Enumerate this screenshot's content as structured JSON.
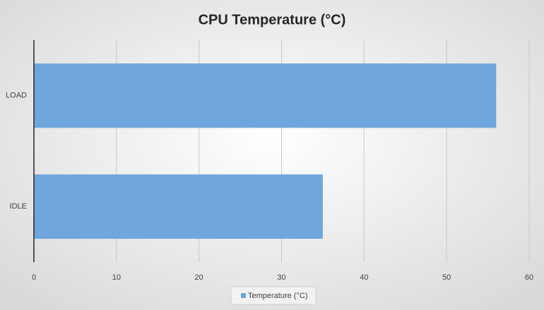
{
  "chart_data": {
    "type": "bar",
    "orientation": "horizontal",
    "title": "CPU Temperature (°C)",
    "categories": [
      "IDLE",
      "LOAD"
    ],
    "series": [
      {
        "name": "Temperature (°C)",
        "color": "#6fa6dc",
        "values": [
          35,
          56
        ]
      }
    ],
    "xlim": [
      0,
      60
    ],
    "xticks": [
      0,
      10,
      20,
      30,
      40,
      50,
      60
    ],
    "grid": true,
    "legend": "bottom"
  }
}
